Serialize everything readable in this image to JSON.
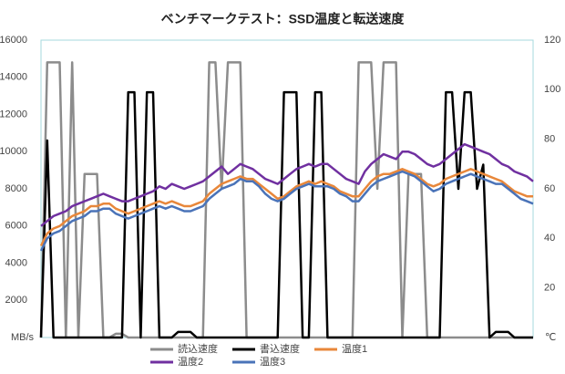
{
  "chart_data": {
    "type": "line",
    "title": "ベンチマークテスト：SSD温度と転送速度",
    "y_label": "MB/s",
    "y2_label": "℃",
    "categories": [
      null,
      null,
      null,
      null,
      null,
      null,
      null,
      null,
      null,
      null,
      null,
      null,
      null,
      null,
      null,
      null,
      null,
      null,
      null,
      null,
      null,
      null,
      null,
      null,
      null,
      null,
      null,
      null,
      null,
      null,
      null,
      null,
      null,
      null,
      null,
      null,
      null,
      null,
      null,
      null,
      null,
      null,
      null,
      null,
      null,
      null,
      null,
      null,
      null,
      null,
      null,
      null,
      null,
      null,
      null,
      null,
      null,
      null,
      null,
      null,
      null,
      null,
      null,
      null,
      null,
      null,
      null,
      null,
      null,
      null,
      null,
      null,
      null,
      null,
      null,
      null,
      null,
      null,
      null,
      null
    ],
    "ylim": [
      0,
      16000
    ],
    "yticks": [
      2000,
      4000,
      6000,
      8000,
      10000,
      12000,
      14000,
      16000
    ],
    "y2lim": [
      0,
      120
    ],
    "y2ticks": [
      20,
      40,
      60,
      80,
      100,
      120
    ],
    "grid": false,
    "series": [
      {
        "name": "読込速度",
        "color": "#8c8c8c",
        "values": [
          0,
          14800,
          14800,
          14800,
          0,
          14800,
          0,
          8800,
          8800,
          8800,
          0,
          0,
          200,
          200,
          0,
          0,
          0,
          0,
          0,
          0,
          0,
          0,
          0,
          0,
          0,
          0,
          0,
          14800,
          14800,
          8000,
          14800,
          14800,
          14800,
          0,
          0,
          0,
          0,
          0,
          0,
          0,
          0,
          0,
          0,
          0,
          0,
          0,
          0,
          0,
          0,
          0,
          0,
          14800,
          14800,
          14800,
          8000,
          14800,
          14800,
          14800,
          0,
          8800,
          8800,
          8800,
          0,
          0,
          0,
          0,
          0,
          0,
          0,
          0,
          0,
          0,
          0,
          0,
          0,
          0,
          0,
          0,
          0,
          0
        ]
      },
      {
        "name": "書込速度",
        "color": "#000000",
        "values": [
          0,
          10600,
          0,
          0,
          0,
          0,
          0,
          0,
          0,
          0,
          0,
          0,
          0,
          0,
          13200,
          13200,
          0,
          13200,
          13200,
          0,
          0,
          0,
          300,
          300,
          300,
          0,
          0,
          0,
          0,
          0,
          0,
          0,
          0,
          0,
          0,
          0,
          0,
          0,
          0,
          13200,
          13200,
          13200,
          0,
          0,
          13200,
          13200,
          0,
          0,
          0,
          0,
          0,
          0,
          0,
          0,
          0,
          0,
          0,
          0,
          0,
          0,
          0,
          0,
          0,
          0,
          0,
          13200,
          13200,
          8000,
          13200,
          13200,
          8000,
          9300,
          0,
          300,
          300,
          300,
          0,
          0,
          0,
          0
        ]
      },
      {
        "name": "温度1",
        "color": "#e8873a",
        "axis": "y2",
        "values": [
          37,
          42,
          44,
          45,
          47,
          49,
          50,
          51,
          53,
          53,
          54,
          54,
          52,
          51,
          50,
          51,
          52,
          53,
          54,
          55,
          54,
          55,
          54,
          53,
          53,
          54,
          55,
          58,
          60,
          62,
          63,
          64,
          65,
          64,
          64,
          62,
          60,
          58,
          56,
          57,
          59,
          61,
          62,
          63,
          62,
          63,
          62,
          61,
          59,
          58,
          57,
          57,
          60,
          63,
          65,
          66,
          66,
          67,
          68,
          67,
          66,
          64,
          62,
          61,
          62,
          64,
          65,
          66,
          67,
          68,
          67,
          66,
          65,
          64,
          63,
          61,
          59,
          58,
          57,
          57
        ]
      },
      {
        "name": "温度2",
        "color": "#7030a0",
        "axis": "y2",
        "values": [
          45,
          47,
          49,
          50,
          51,
          53,
          54,
          55,
          56,
          57,
          58,
          57,
          56,
          55,
          55,
          56,
          57,
          58,
          59,
          61,
          60,
          62,
          61,
          60,
          61,
          62,
          63,
          65,
          67,
          69,
          66,
          68,
          70,
          69,
          68,
          66,
          64,
          63,
          62,
          64,
          66,
          68,
          69,
          70,
          69,
          70,
          70,
          68,
          66,
          64,
          63,
          62,
          67,
          70,
          72,
          74,
          73,
          72,
          75,
          75,
          74,
          72,
          70,
          69,
          70,
          72,
          74,
          76,
          78,
          77,
          76,
          75,
          74,
          72,
          70,
          69,
          67,
          66,
          65,
          63
        ]
      },
      {
        "name": "温度3",
        "color": "#4a73b8",
        "axis": "y2",
        "values": [
          35,
          40,
          42,
          43,
          45,
          47,
          48,
          49,
          51,
          51,
          52,
          52,
          50,
          49,
          48,
          49,
          50,
          51,
          52,
          53,
          52,
          53,
          52,
          51,
          51,
          52,
          53,
          56,
          58,
          60,
          61,
          62,
          64,
          63,
          63,
          61,
          58,
          56,
          55,
          56,
          58,
          60,
          61,
          62,
          61,
          61,
          61,
          60,
          58,
          57,
          55,
          55,
          58,
          61,
          63,
          64,
          65,
          66,
          67,
          66,
          65,
          63,
          61,
          59,
          60,
          62,
          63,
          64,
          65,
          66,
          65,
          64,
          63,
          62,
          62,
          60,
          58,
          56,
          55,
          54
        ]
      }
    ]
  }
}
